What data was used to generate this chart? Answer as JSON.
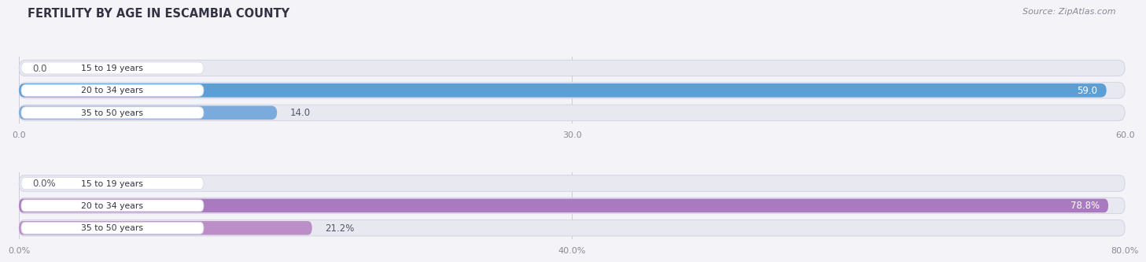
{
  "title": "FERTILITY BY AGE IN ESCAMBIA COUNTY",
  "source": "Source: ZipAtlas.com",
  "top_bars": {
    "categories": [
      "15 to 19 years",
      "20 to 34 years",
      "35 to 50 years"
    ],
    "values": [
      0.0,
      59.0,
      14.0
    ],
    "max_val": 60.0,
    "tick_vals": [
      0.0,
      30.0,
      60.0
    ],
    "tick_labels": [
      "0.0",
      "30.0",
      "60.0"
    ],
    "bar_color": "#7aabdc",
    "bar_color_full": "#5b9fd6",
    "value_label_outside_color": "#555566",
    "value_label_inside_color": "#ffffff"
  },
  "bottom_bars": {
    "categories": [
      "15 to 19 years",
      "20 to 34 years",
      "35 to 50 years"
    ],
    "values": [
      0.0,
      78.8,
      21.2
    ],
    "max_val": 80.0,
    "tick_vals": [
      0.0,
      40.0,
      80.0
    ],
    "tick_labels": [
      "0.0%",
      "40.0%",
      "80.0%"
    ],
    "bar_color": "#bb8ec8",
    "bar_color_full": "#aa7ac0",
    "value_label_outside_color": "#555566",
    "value_label_inside_color": "#ffffff"
  },
  "bg_color": "#f4f4f8",
  "bar_row_bg": "#e8e8f0",
  "bar_row_edge": "#d0d0de",
  "label_pill_bg": "#ffffff",
  "label_pill_edge": "#d8d8e8",
  "title_color": "#333344",
  "source_color": "#888899",
  "tick_color": "#888899",
  "grid_color": "#c8c8d8"
}
